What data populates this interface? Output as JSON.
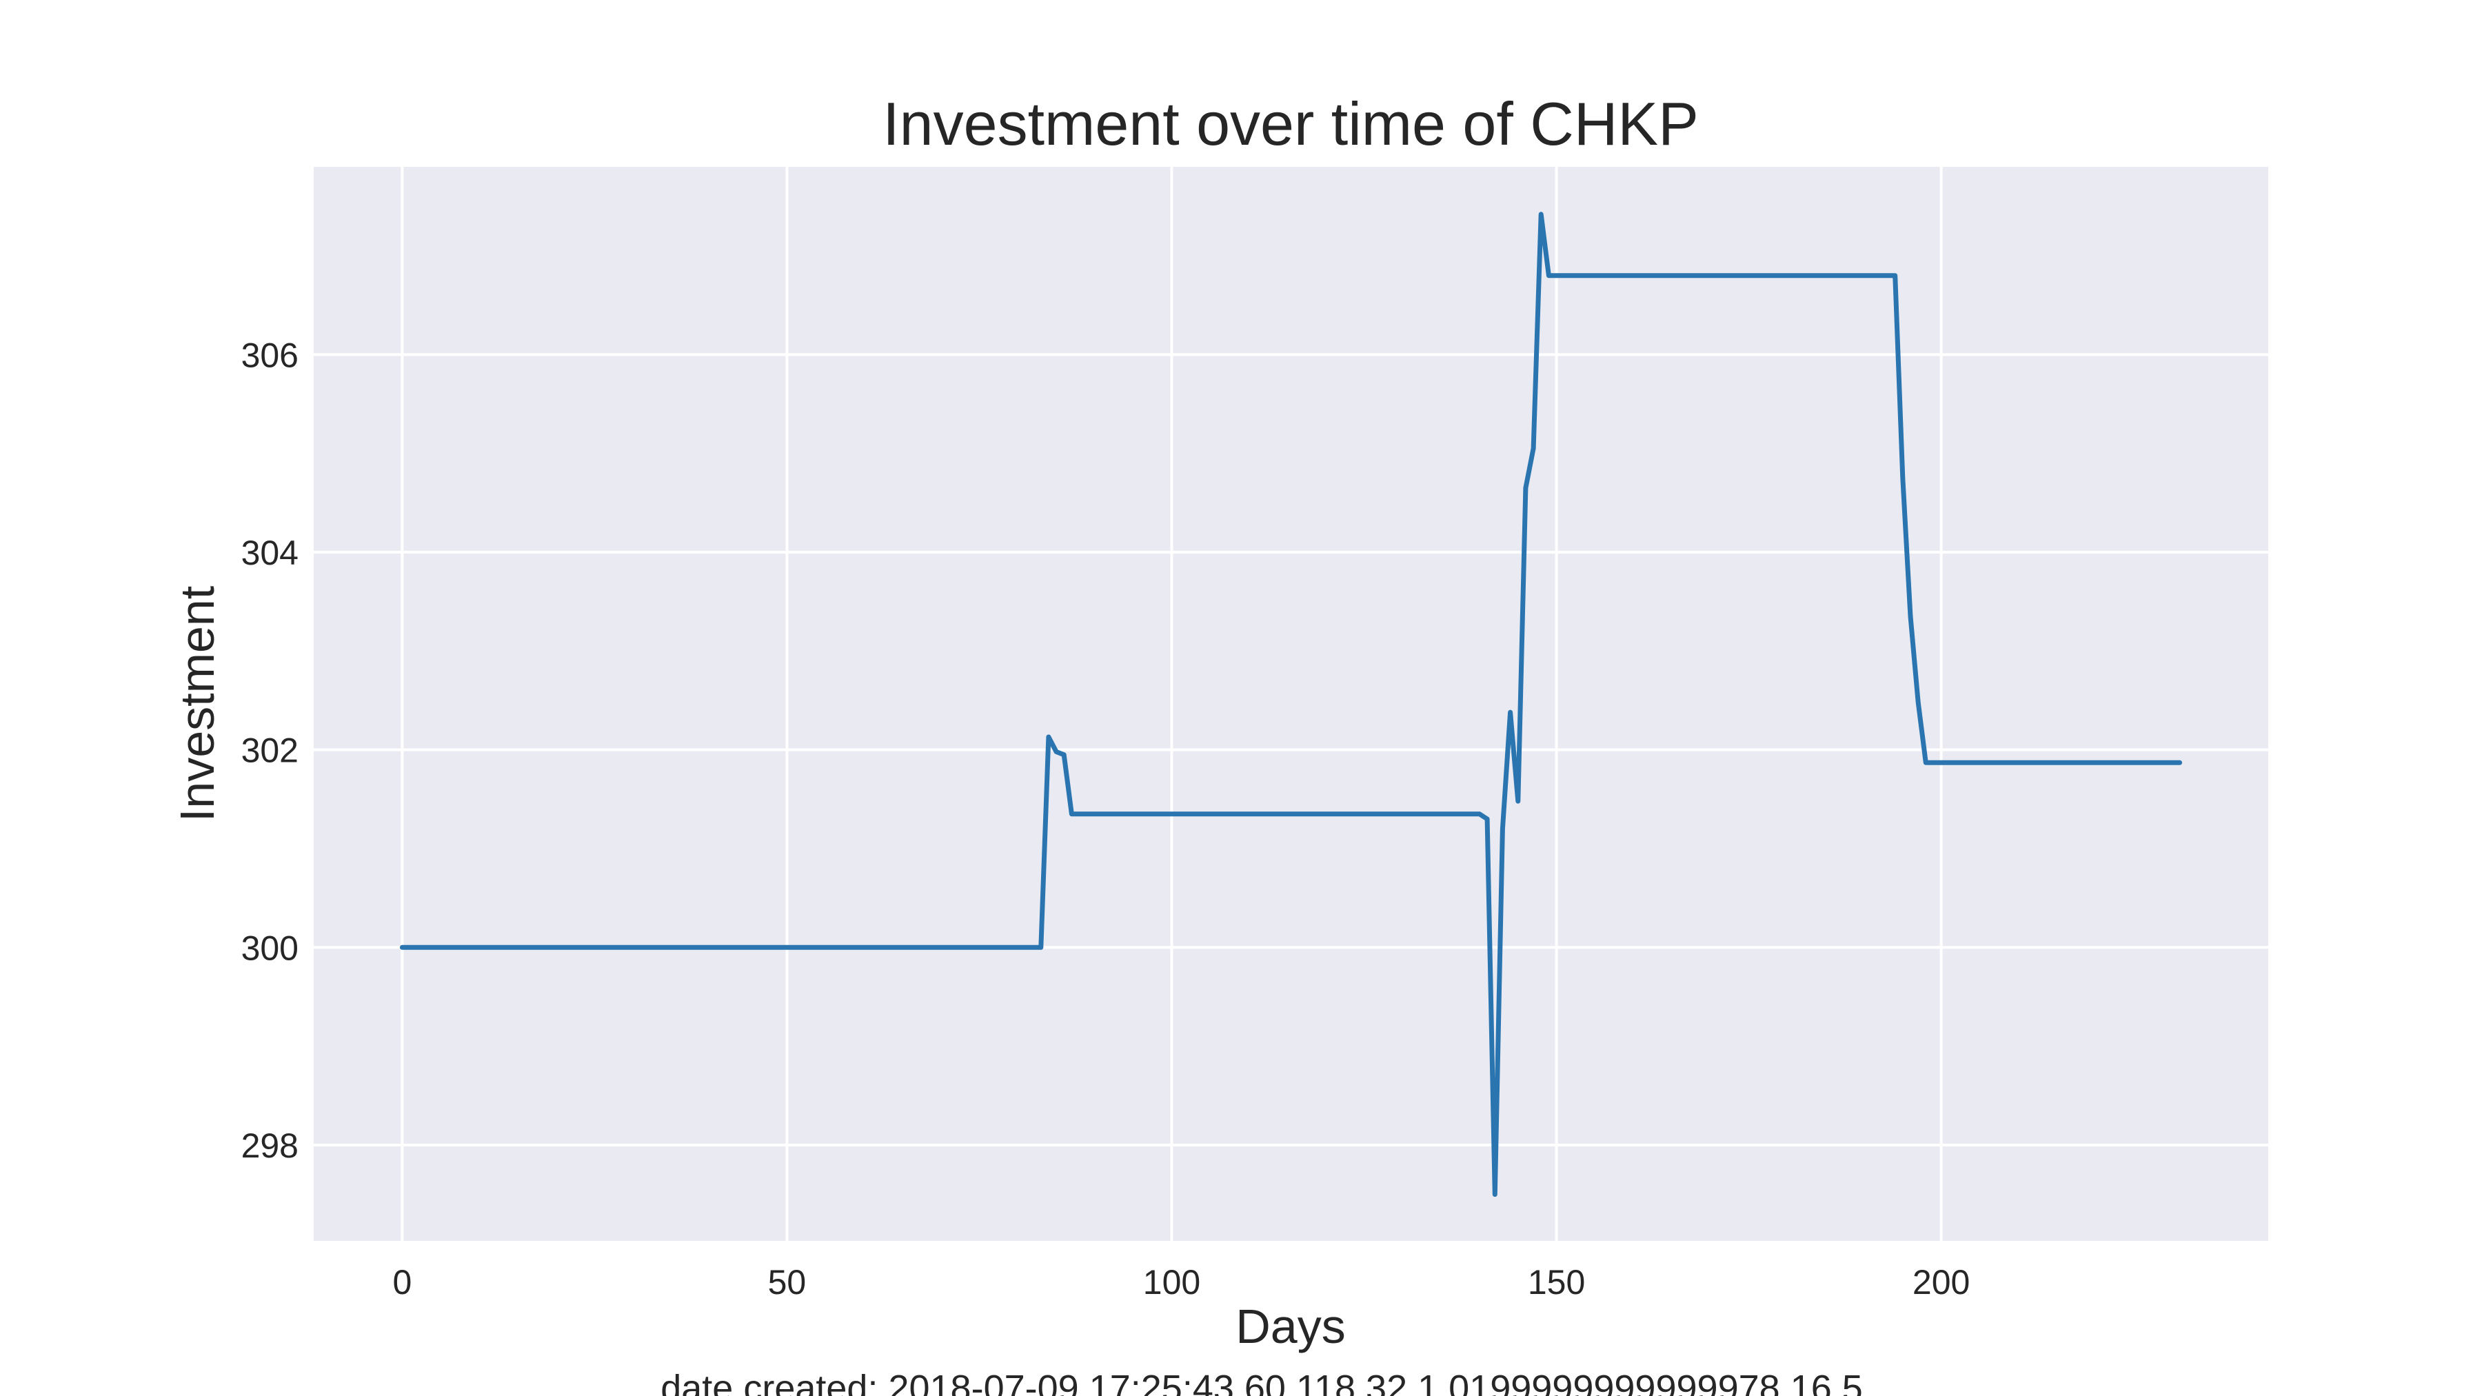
{
  "chart_data": {
    "type": "line",
    "title": "Investment over time of CHKP",
    "xlabel": "Days",
    "ylabel": "Investment",
    "caption": "date created: 2018-07-09 17:25:43 60 118 32 1.0199999999999978 16 5",
    "xlim": [
      -11.5,
      242.5
    ],
    "ylim": [
      297.03,
      307.9
    ],
    "xticks": [
      0,
      50,
      100,
      150,
      200
    ],
    "yticks": [
      298,
      300,
      302,
      304,
      306
    ],
    "grid": true,
    "colors": {
      "background": "#eaeaf2",
      "grid": "#ffffff",
      "line": "#2a75b0"
    },
    "series": [
      {
        "x": [
          0,
          83,
          84,
          85,
          86,
          87,
          140,
          141,
          142,
          143,
          144,
          145,
          146,
          147,
          148,
          149,
          194,
          195,
          196,
          197,
          198,
          231
        ],
        "y": [
          300.0,
          300.0,
          302.13,
          301.98,
          301.95,
          301.35,
          301.35,
          301.3,
          297.5,
          301.2,
          302.38,
          301.48,
          304.65,
          305.05,
          307.42,
          306.8,
          306.8,
          304.75,
          303.35,
          302.48,
          301.87,
          301.87
        ]
      }
    ]
  }
}
